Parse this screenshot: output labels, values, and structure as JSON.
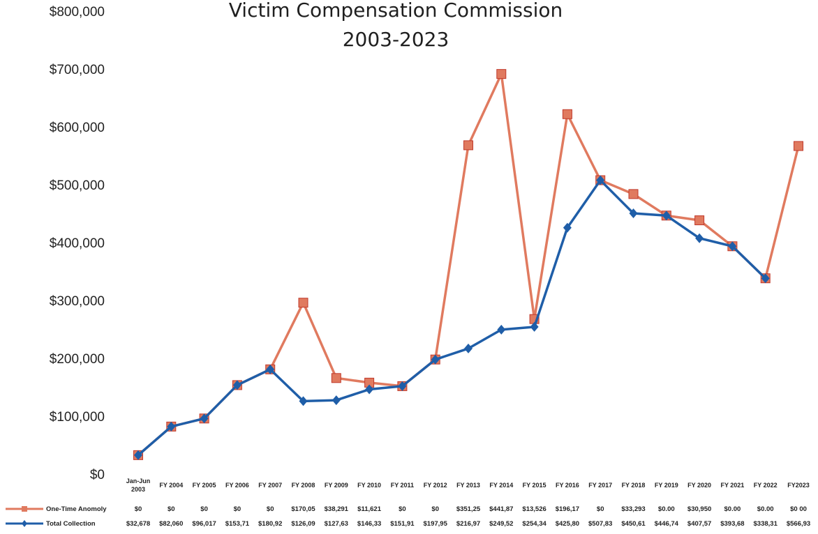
{
  "chart_data": {
    "type": "line",
    "title": [
      "Victim Compensation Commission",
      "2003-2023"
    ],
    "yticks": [
      "$0",
      "$100,000",
      "$200,000",
      "$300,000",
      "$400,000",
      "$500,000",
      "$600,000",
      "$700,000",
      "$800,000"
    ],
    "ylim": [
      0,
      800000
    ],
    "grid": false,
    "legend": "bottom-left data table",
    "categories": [
      [
        "Jan-Jun",
        "2003"
      ],
      [
        "FY 2004"
      ],
      [
        "FY 2005"
      ],
      [
        "FY 2006"
      ],
      [
        "FY 2007"
      ],
      [
        "FY 2008"
      ],
      [
        "FY 2009"
      ],
      [
        "FY 2010"
      ],
      [
        "FY 2011"
      ],
      [
        "FY 2012"
      ],
      [
        "FY 2013"
      ],
      [
        "FY 2014"
      ],
      [
        "FY 2015"
      ],
      [
        "FY 2016"
      ],
      [
        "FY 2017"
      ],
      [
        "FY 2018"
      ],
      [
        "FY 2019"
      ],
      [
        "FY 2020"
      ],
      [
        "FY 2021"
      ],
      [
        "FY 2022"
      ],
      [
        "FY2023"
      ]
    ],
    "series": [
      {
        "name": "One-Time Anomoly",
        "color": "#e07a5f",
        "marker": "square",
        "values": [
          32678,
          82060,
          96017,
          153710,
          180920,
          296140,
          165920,
          157950,
          151910,
          197950,
          568220,
          691390,
          267860,
          621970,
          507830,
          483900,
          446740,
          438520,
          393680,
          338310,
          566930
        ],
        "table": [
          "$0",
          "$0",
          "$0",
          "$0",
          "$0",
          "$170,05",
          "$38,291",
          "$11,621",
          "$0",
          "$0",
          "$351,25",
          "$441,87",
          "$13,526",
          "$196,17",
          "$0",
          "$33,293",
          "$0.00",
          "$30,950",
          "$0.00",
          "$0.00",
          "$0 00"
        ]
      },
      {
        "name": "Total Collection",
        "color": "#1f5ea8",
        "marker": "diamond",
        "values": [
          32678,
          82060,
          96017,
          153710,
          180920,
          126090,
          127630,
          146330,
          151910,
          197950,
          216970,
          249520,
          254340,
          425800,
          507830,
          450610,
          446740,
          407570,
          393680,
          338310,
          566930
        ],
        "line_points": 20,
        "table": [
          "$32,678",
          "$82,060",
          "$96,017",
          "$153,71",
          "$180,92",
          "$126,09",
          "$127,63",
          "$146,33",
          "$151,91",
          "$197,95",
          "$216,97",
          "$249,52",
          "$254,34",
          "$425,80",
          "$507,83",
          "$450,61",
          "$446,74",
          "$407,57",
          "$393,68",
          "$338,31",
          "$566,93"
        ]
      }
    ]
  }
}
